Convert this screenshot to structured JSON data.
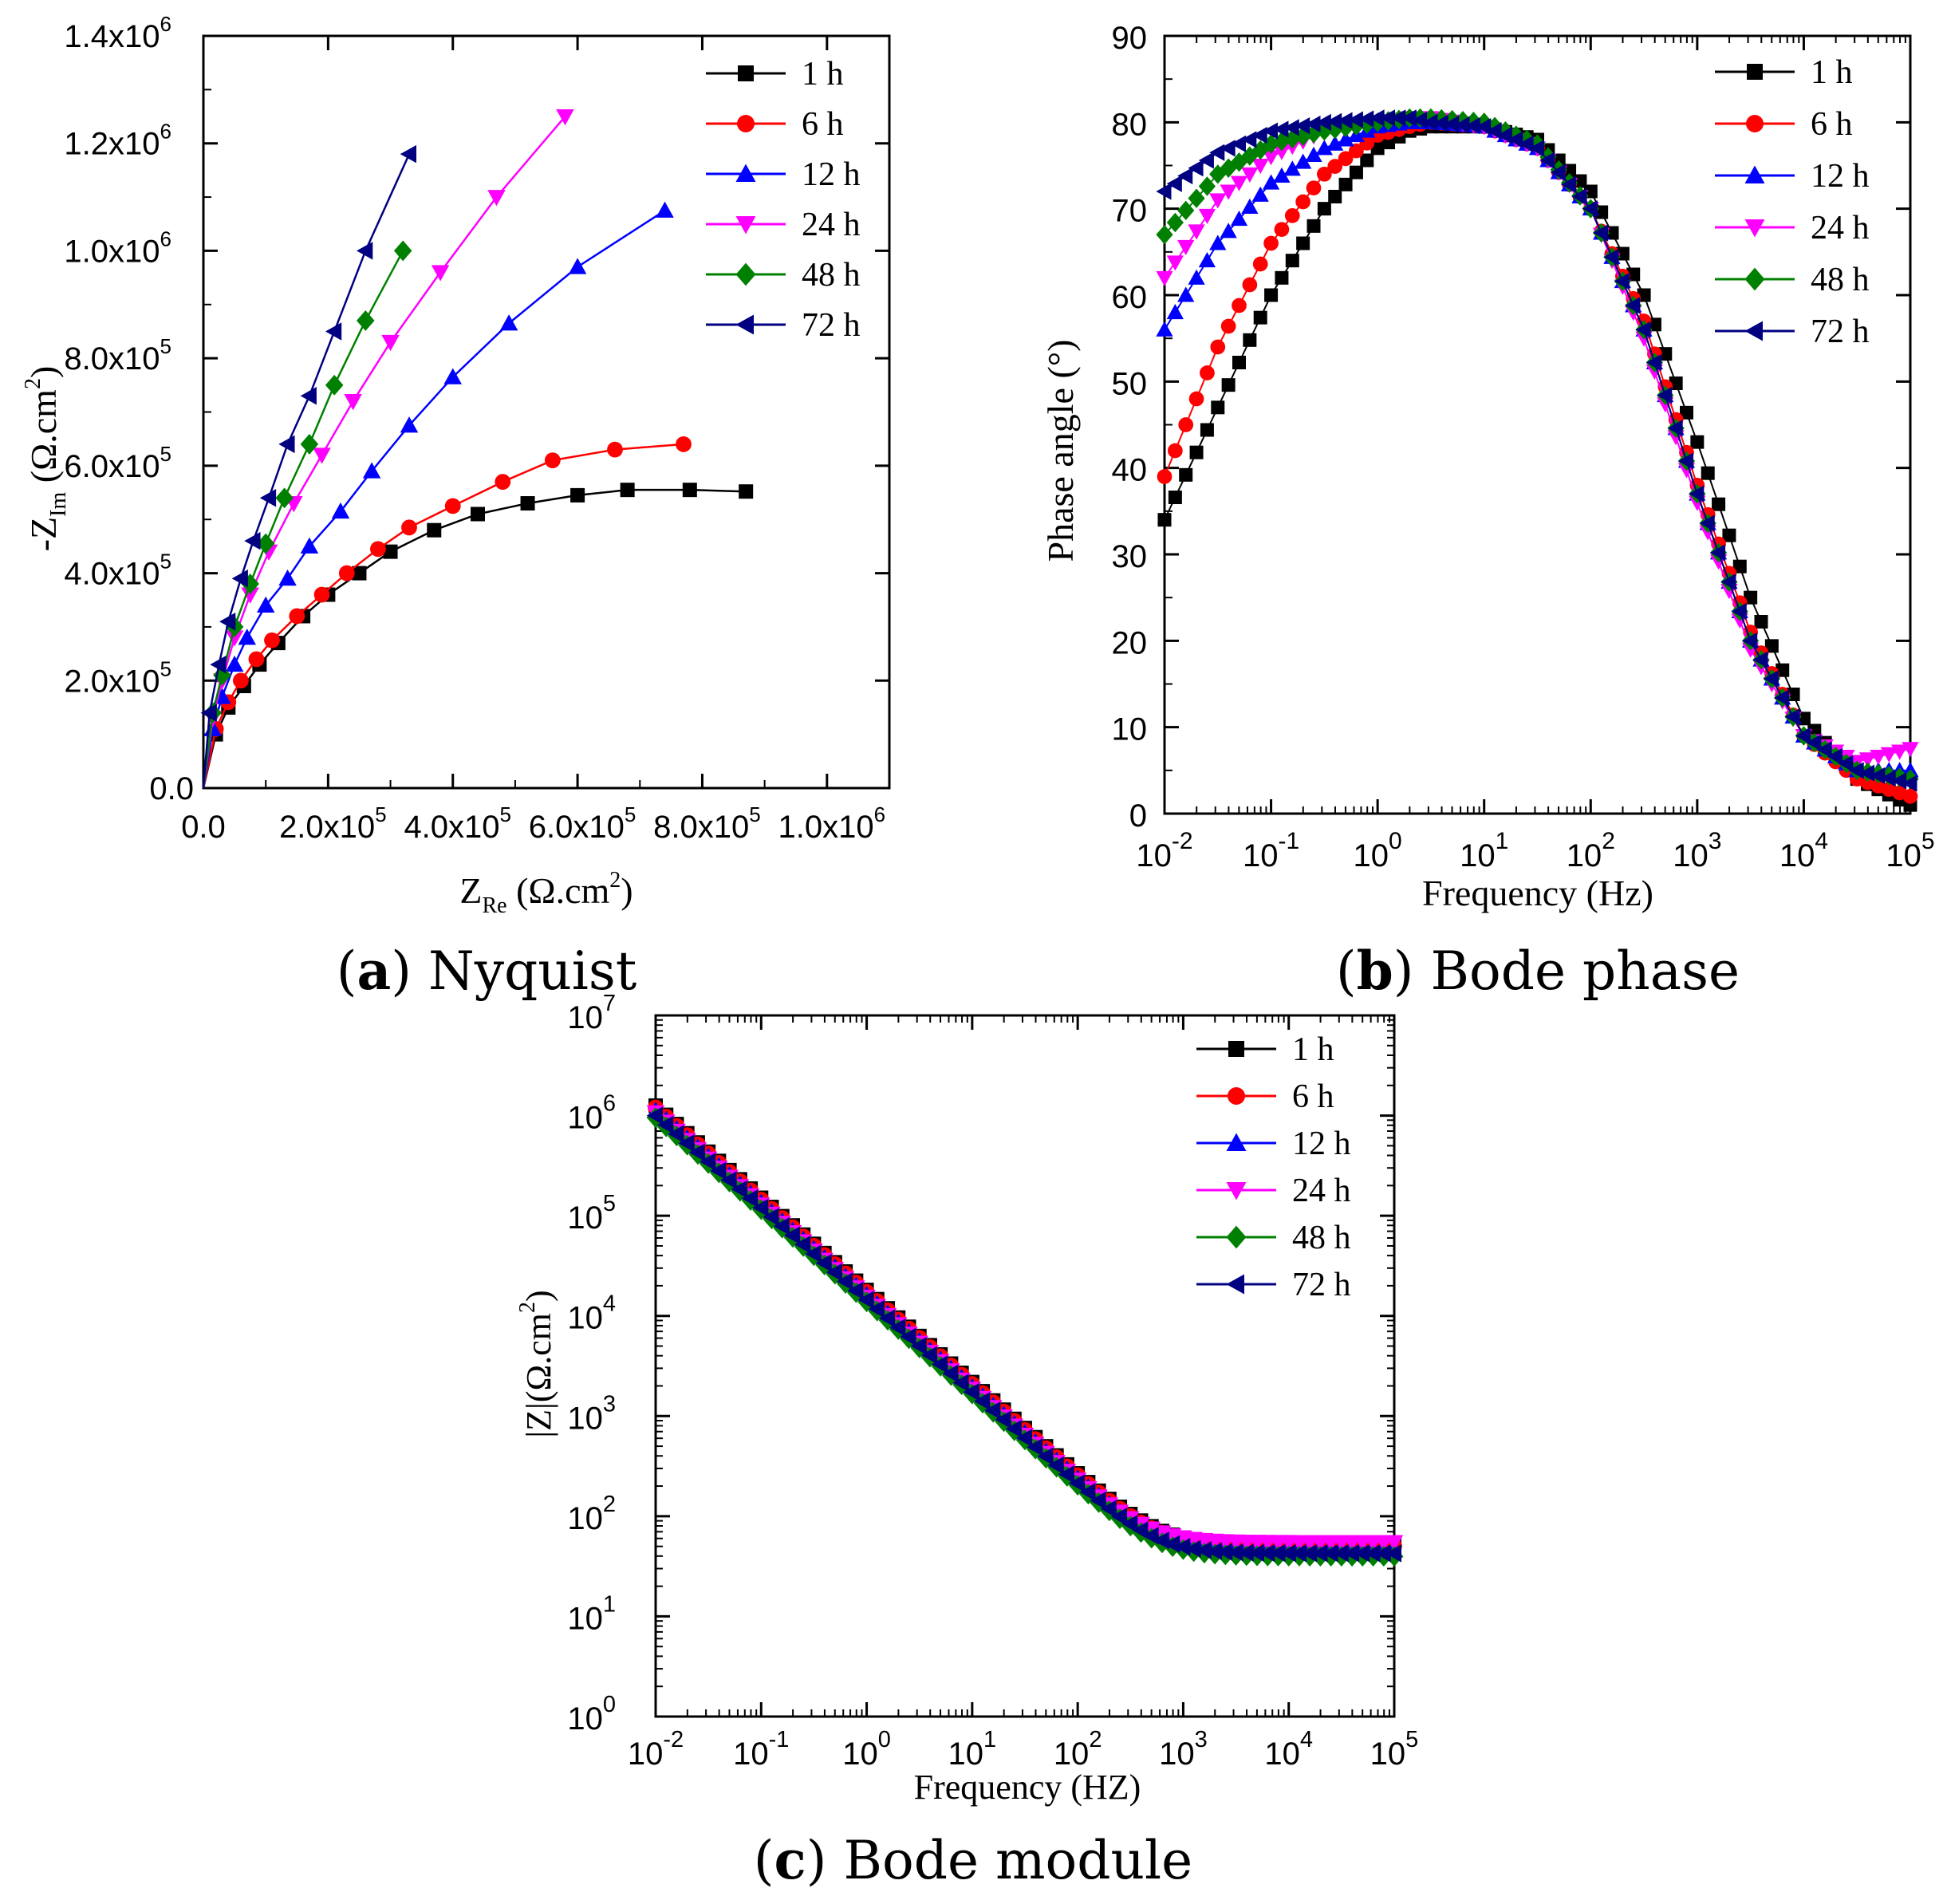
{
  "chart_data": [
    {
      "id": "nyquist",
      "type": "line",
      "caption": {
        "letter": "a",
        "title": "Nyquist"
      },
      "xlabel": {
        "main": "Z",
        "sub": "Re",
        "rest": " (Ω.cm",
        "sup": "2",
        "end": ")"
      },
      "ylabel": {
        "pre": "-Z",
        "sub": "Im",
        "rest": " (Ω.cm",
        "sup": "2",
        "end": ")"
      },
      "xlim": [
        0,
        1100000
      ],
      "ylim": [
        0,
        1400000
      ],
      "xticks": [
        {
          "value": 0,
          "mant": "0.0"
        },
        {
          "value": 200000,
          "mant": "2.0x10",
          "exp": "5"
        },
        {
          "value": 400000,
          "mant": "4.0x10",
          "exp": "5"
        },
        {
          "value": 600000,
          "mant": "6.0x10",
          "exp": "5"
        },
        {
          "value": 800000,
          "mant": "8.0x10",
          "exp": "5"
        },
        {
          "value": 1000000,
          "mant": "1.0x10",
          "exp": "6"
        }
      ],
      "yticks": [
        {
          "value": 0,
          "mant": "0.0"
        },
        {
          "value": 200000,
          "mant": "2.0x10",
          "exp": "5"
        },
        {
          "value": 400000,
          "mant": "4.0x10",
          "exp": "5"
        },
        {
          "value": 600000,
          "mant": "6.0x10",
          "exp": "5"
        },
        {
          "value": 800000,
          "mant": "8.0x10",
          "exp": "5"
        },
        {
          "value": 1000000,
          "mant": "1.0x10",
          "exp": "6"
        },
        {
          "value": 1200000,
          "mant": "1.2x10",
          "exp": "6"
        },
        {
          "value": 1400000,
          "mant": "1.4x10",
          "exp": "6"
        }
      ],
      "series": [
        {
          "name": "1 h",
          "color": "#000000",
          "marker": "square",
          "points": [
            [
              20000,
              100000
            ],
            [
              40000,
              150000
            ],
            [
              65000,
              190000
            ],
            [
              90000,
              230000
            ],
            [
              120000,
              270000
            ],
            [
              160000,
              320000
            ],
            [
              200000,
              360000
            ],
            [
              250000,
              400000
            ],
            [
              300000,
              440000
            ],
            [
              370000,
              480000
            ],
            [
              440000,
              510000
            ],
            [
              520000,
              530000
            ],
            [
              600000,
              545000
            ],
            [
              680000,
              555000
            ],
            [
              780000,
              555000
            ],
            [
              870000,
              552000
            ]
          ]
        },
        {
          "name": "6 h",
          "color": "#ff0000",
          "marker": "circle",
          "points": [
            [
              20000,
              110000
            ],
            [
              40000,
              160000
            ],
            [
              60000,
              200000
            ],
            [
              85000,
              240000
            ],
            [
              110000,
              275000
            ],
            [
              150000,
              320000
            ],
            [
              190000,
              360000
            ],
            [
              230000,
              400000
            ],
            [
              280000,
              445000
            ],
            [
              330000,
              485000
            ],
            [
              400000,
              525000
            ],
            [
              480000,
              570000
            ],
            [
              560000,
              610000
            ],
            [
              660000,
              630000
            ],
            [
              770000,
              640000
            ]
          ]
        },
        {
          "name": "12 h",
          "color": "#0000ff",
          "marker": "triangle-up",
          "points": [
            [
              15000,
              110000
            ],
            [
              30000,
              170000
            ],
            [
              50000,
              230000
            ],
            [
              70000,
              280000
            ],
            [
              100000,
              340000
            ],
            [
              135000,
              390000
            ],
            [
              170000,
              450000
            ],
            [
              220000,
              515000
            ],
            [
              270000,
              590000
            ],
            [
              330000,
              675000
            ],
            [
              400000,
              765000
            ],
            [
              490000,
              865000
            ],
            [
              600000,
              970000
            ],
            [
              740000,
              1075000
            ]
          ]
        },
        {
          "name": "24 h",
          "color": "#ff00ff",
          "marker": "triangle-down",
          "points": [
            [
              15000,
              130000
            ],
            [
              30000,
              200000
            ],
            [
              50000,
              280000
            ],
            [
              75000,
              360000
            ],
            [
              105000,
              440000
            ],
            [
              145000,
              530000
            ],
            [
              190000,
              620000
            ],
            [
              240000,
              720000
            ],
            [
              300000,
              830000
            ],
            [
              380000,
              960000
            ],
            [
              470000,
              1100000
            ],
            [
              580000,
              1250000
            ]
          ]
        },
        {
          "name": "48 h",
          "color": "#008000",
          "marker": "diamond",
          "points": [
            [
              15000,
              140000
            ],
            [
              30000,
              210000
            ],
            [
              50000,
              300000
            ],
            [
              75000,
              380000
            ],
            [
              100000,
              455000
            ],
            [
              130000,
              540000
            ],
            [
              170000,
              640000
            ],
            [
              210000,
              750000
            ],
            [
              260000,
              870000
            ],
            [
              320000,
              1000000
            ]
          ]
        },
        {
          "name": "72 h",
          "color": "#000080",
          "marker": "triangle-left",
          "points": [
            [
              10000,
              140000
            ],
            [
              25000,
              230000
            ],
            [
              40000,
              310000
            ],
            [
              60000,
              390000
            ],
            [
              80000,
              460000
            ],
            [
              105000,
              540000
            ],
            [
              135000,
              640000
            ],
            [
              170000,
              730000
            ],
            [
              210000,
              850000
            ],
            [
              260000,
              1000000
            ],
            [
              330000,
              1180000
            ]
          ]
        }
      ]
    },
    {
      "id": "bode-phase",
      "type": "line",
      "caption": {
        "letter": "b",
        "title": "Bode phase"
      },
      "xlabel": {
        "text": "Frequency (Hz)"
      },
      "ylabel": {
        "text": "Phase angle (°)"
      },
      "xscale": "log",
      "xlim_exp": [
        -2,
        5
      ],
      "ylim": [
        0,
        90
      ],
      "xticks": [
        {
          "base": "10",
          "exp": "-2"
        },
        {
          "base": "10",
          "exp": "-1"
        },
        {
          "base": "10",
          "exp": "0"
        },
        {
          "base": "10",
          "exp": "1"
        },
        {
          "base": "10",
          "exp": "2"
        },
        {
          "base": "10",
          "exp": "3"
        },
        {
          "base": "10",
          "exp": "4"
        },
        {
          "base": "10",
          "exp": "5"
        }
      ],
      "yticks": [
        "0",
        "10",
        "20",
        "30",
        "40",
        "50",
        "60",
        "70",
        "80",
        "90"
      ],
      "series": [
        {
          "name": "1 h",
          "color": "#000000",
          "marker": "square",
          "curve": [
            [
              -2,
              34
            ],
            [
              -1.5,
              47
            ],
            [
              -1,
              60
            ],
            [
              -0.5,
              70
            ],
            [
              0,
              77
            ],
            [
              0.3,
              79
            ],
            [
              0.5,
              79.5
            ],
            [
              1,
              79.5
            ],
            [
              1.5,
              78
            ],
            [
              2,
              72
            ],
            [
              2.5,
              60
            ],
            [
              3,
              43
            ],
            [
              3.5,
              25
            ],
            [
              4,
              11
            ],
            [
              4.5,
              4
            ],
            [
              5,
              1
            ]
          ]
        },
        {
          "name": "6 h",
          "color": "#ff0000",
          "marker": "circle",
          "curve": [
            [
              -2,
              39
            ],
            [
              -1.5,
              54
            ],
            [
              -1,
              66
            ],
            [
              -0.5,
              74
            ],
            [
              0,
              78.5
            ],
            [
              0.3,
              79.5
            ],
            [
              0.5,
              80
            ],
            [
              1,
              79.5
            ],
            [
              1.5,
              77
            ],
            [
              2,
              70
            ],
            [
              2.5,
              57
            ],
            [
              3,
              38
            ],
            [
              3.5,
              21
            ],
            [
              4,
              9
            ],
            [
              4.5,
              4
            ],
            [
              5,
              2
            ]
          ]
        },
        {
          "name": "12 h",
          "color": "#0000ff",
          "marker": "triangle-up",
          "curve": [
            [
              -2,
              56
            ],
            [
              -1.5,
              66
            ],
            [
              -1,
              73
            ],
            [
              -0.5,
              77
            ],
            [
              0,
              79.5
            ],
            [
              0.3,
              80
            ],
            [
              0.5,
              80
            ],
            [
              1,
              79.5
            ],
            [
              1.5,
              77
            ],
            [
              2,
              70
            ],
            [
              2.5,
              56
            ],
            [
              3,
              37
            ],
            [
              3.5,
              20
            ],
            [
              4,
              9
            ],
            [
              4.5,
              5
            ],
            [
              5,
              5
            ]
          ]
        },
        {
          "name": "24 h",
          "color": "#ff00ff",
          "marker": "triangle-down",
          "curve": [
            [
              -2,
              62
            ],
            [
              -1.5,
              71
            ],
            [
              -1,
              76
            ],
            [
              -0.5,
              79
            ],
            [
              0,
              80
            ],
            [
              0.3,
              80.5
            ],
            [
              0.5,
              80.5
            ],
            [
              1,
              79.5
            ],
            [
              1.5,
              77
            ],
            [
              2,
              70
            ],
            [
              2.5,
              55
            ],
            [
              3,
              36
            ],
            [
              3.5,
              19
            ],
            [
              4,
              9
            ],
            [
              4.5,
              6
            ],
            [
              5,
              7.5
            ]
          ]
        },
        {
          "name": "48 h",
          "color": "#008000",
          "marker": "diamond",
          "curve": [
            [
              -2,
              67
            ],
            [
              -1.5,
              74
            ],
            [
              -1,
              77.5
            ],
            [
              -0.5,
              79
            ],
            [
              0,
              80
            ],
            [
              0.3,
              80.5
            ],
            [
              0.5,
              80.5
            ],
            [
              1,
              80
            ],
            [
              1.5,
              77.5
            ],
            [
              2,
              70
            ],
            [
              2.5,
              56
            ],
            [
              3,
              37
            ],
            [
              3.5,
              20
            ],
            [
              4,
              9
            ],
            [
              4.5,
              5
            ],
            [
              5,
              4
            ]
          ]
        },
        {
          "name": "72 h",
          "color": "#000080",
          "marker": "triangle-left",
          "curve": [
            [
              -2,
              72
            ],
            [
              -1.5,
              76.5
            ],
            [
              -1,
              79
            ],
            [
              -0.5,
              80
            ],
            [
              0,
              80.5
            ],
            [
              0.3,
              80.5
            ],
            [
              0.5,
              80
            ],
            [
              1,
              79.5
            ],
            [
              1.5,
              77
            ],
            [
              2,
              70
            ],
            [
              2.5,
              56
            ],
            [
              3,
              37
            ],
            [
              3.5,
              20
            ],
            [
              4,
              9
            ],
            [
              4.5,
              5
            ],
            [
              5,
              3.5
            ]
          ]
        }
      ]
    },
    {
      "id": "bode-module",
      "type": "line",
      "caption": {
        "letter": "c",
        "title": "Bode module"
      },
      "xlabel": {
        "text": "Frequency (HZ)"
      },
      "ylabel": {
        "pre": "|Z|(Ω.cm",
        "sup": "2",
        "end": ")"
      },
      "xscale": "log",
      "yscale": "log",
      "xlim_exp": [
        -2,
        5
      ],
      "ylim_exp": [
        0,
        7
      ],
      "xticks": [
        {
          "base": "10",
          "exp": "-2"
        },
        {
          "base": "10",
          "exp": "-1"
        },
        {
          "base": "10",
          "exp": "0"
        },
        {
          "base": "10",
          "exp": "1"
        },
        {
          "base": "10",
          "exp": "2"
        },
        {
          "base": "10",
          "exp": "3"
        },
        {
          "base": "10",
          "exp": "4"
        },
        {
          "base": "10",
          "exp": "5"
        }
      ],
      "yticks": [
        {
          "base": "10",
          "exp": "0"
        },
        {
          "base": "10",
          "exp": "1"
        },
        {
          "base": "10",
          "exp": "2"
        },
        {
          "base": "10",
          "exp": "3"
        },
        {
          "base": "10",
          "exp": "4"
        },
        {
          "base": "10",
          "exp": "5"
        },
        {
          "base": "10",
          "exp": "6"
        },
        {
          "base": "10",
          "exp": "7"
        }
      ],
      "series": [
        {
          "name": "1 h",
          "color": "#000000",
          "marker": "square",
          "logZ0": 6.1,
          "logRs": 1.72
        },
        {
          "name": "6 h",
          "color": "#ff0000",
          "marker": "circle",
          "logZ0": 6.08,
          "logRs": 1.7
        },
        {
          "name": "12 h",
          "color": "#0000ff",
          "marker": "triangle-up",
          "logZ0": 6.05,
          "logRs": 1.66
        },
        {
          "name": "24 h",
          "color": "#ff00ff",
          "marker": "triangle-down",
          "logZ0": 6.03,
          "logRs": 1.74
        },
        {
          "name": "48 h",
          "color": "#008000",
          "marker": "diamond",
          "logZ0": 5.98,
          "logRs": 1.6
        },
        {
          "name": "72 h",
          "color": "#000080",
          "marker": "triangle-left",
          "logZ0": 6.0,
          "logRs": 1.63
        }
      ]
    }
  ]
}
